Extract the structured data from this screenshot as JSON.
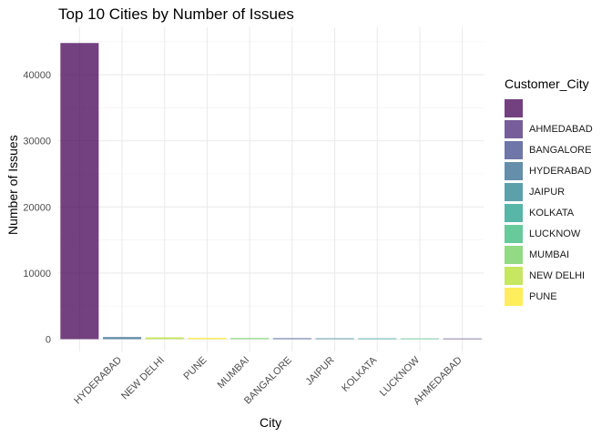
{
  "chart_data": {
    "type": "bar",
    "title": "Top 10 Cities by Number of Issues",
    "xlabel": "City",
    "ylabel": "Number of Issues",
    "ylim": [
      0,
      46000
    ],
    "yticks": [
      0,
      10000,
      20000,
      30000,
      40000
    ],
    "ytick_labels": [
      "0",
      "10000",
      "20000",
      "30000",
      "40000"
    ],
    "grid": true,
    "legend_position": "right",
    "legend_title": "Customer_City",
    "categories": [
      "",
      "HYDERABAD",
      "NEW DELHI",
      "PUNE",
      "MUMBAI",
      "BANGALORE",
      "JAIPUR",
      "KOLKATA",
      "LUCKNOW",
      "AHMEDABAD"
    ],
    "values": [
      44800,
      320,
      270,
      200,
      170,
      140,
      130,
      120,
      110,
      100
    ],
    "bar_fill": [
      "",
      "HYDERABAD",
      "NEW DELHI",
      "PUNE",
      "MUMBAI",
      "BANGALORE",
      "JAIPUR",
      "KOLKATA",
      "LUCKNOW",
      "AHMEDABAD"
    ],
    "legend": [
      {
        "label": "",
        "color": "#440154"
      },
      {
        "label": "AHMEDABAD",
        "color": "#482878"
      },
      {
        "label": "BANGALORE",
        "color": "#3E4A89"
      },
      {
        "label": "HYDERABAD",
        "color": "#31688E"
      },
      {
        "label": "JAIPUR",
        "color": "#26828E"
      },
      {
        "label": "KOLKATA",
        "color": "#1F9E89"
      },
      {
        "label": "LUCKNOW",
        "color": "#35B779"
      },
      {
        "label": "MUMBAI",
        "color": "#6DCD59"
      },
      {
        "label": "NEW DELHI",
        "color": "#B4DE2C"
      },
      {
        "label": "PUNE",
        "color": "#FDE725"
      }
    ],
    "bar_opacity": 0.75
  }
}
